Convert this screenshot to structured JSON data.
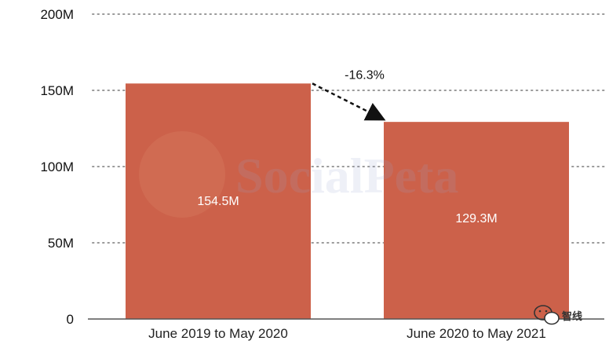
{
  "chart_data": {
    "type": "bar",
    "categories": [
      "June 2019 to May 2020",
      "June 2020 to May 2021"
    ],
    "values": [
      154.5,
      129.3
    ],
    "data_labels": [
      "154.5M",
      "129.3M"
    ],
    "title": "",
    "xlabel": "",
    "ylabel": "",
    "ylim": [
      0,
      200
    ],
    "yticks": [
      0,
      50,
      100,
      150,
      200
    ],
    "ytick_labels": [
      "0",
      "50M",
      "100M",
      "150M",
      "200M"
    ],
    "grid": "horizontal dotted",
    "bar_color": "#cc614a",
    "annotation": {
      "text": "-16.3%",
      "from": 0,
      "to": 1
    }
  },
  "watermark": {
    "logo_text": "SocialPeta",
    "badge_text": "智线",
    "badge_icon": "wechat-icon"
  }
}
